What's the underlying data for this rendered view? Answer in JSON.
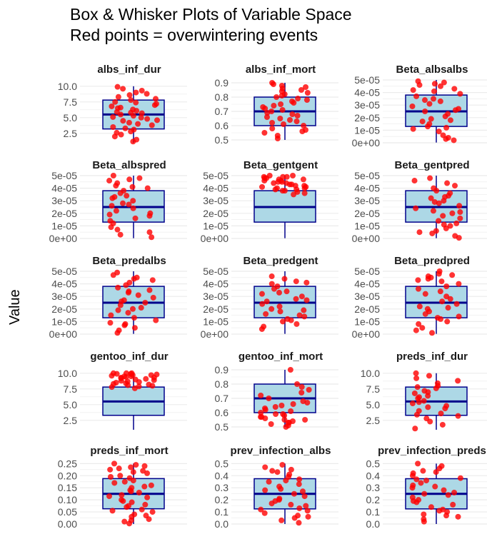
{
  "title_line1": "Box & Whisker Plots of Variable Space",
  "title_line2": "Red points = overwintering events",
  "ylabel": "Value",
  "colors": {
    "box_fill": "#add8e6",
    "box_stroke": "#00008b",
    "point": "#ff0000",
    "grid": "#ebebeb"
  },
  "chart_data": [
    {
      "type": "box",
      "title": "albs_inf_dur",
      "ylim": [
        1,
        11
      ],
      "ticks": [
        "2.5",
        "5.0",
        "7.5",
        "10.0"
      ],
      "tick_values": [
        2.5,
        5,
        7.5,
        10
      ],
      "box": {
        "min": 1,
        "q1": 3.2,
        "median": 5.5,
        "q3": 7.8,
        "max": 10
      },
      "points": [
        1.2,
        1.5,
        2,
        2.3,
        2.8,
        3.1,
        3.5,
        3.8,
        4,
        4.2,
        4.5,
        4.8,
        5,
        5.1,
        5.3,
        5.5,
        5.7,
        5.9,
        6.1,
        6.3,
        6.5,
        6.8,
        7,
        7.2,
        7.5,
        7.8,
        8,
        8.3,
        8.6,
        9,
        9.3,
        9.6,
        9.9,
        4.6,
        5.8,
        6.6,
        7.4,
        3.3,
        2.6,
        8.8
      ]
    },
    {
      "type": "box",
      "title": "albs_inf_mort",
      "ylim": [
        0.48,
        0.92
      ],
      "ticks": [
        "0.5",
        "0.6",
        "0.7",
        "0.8",
        "0.9"
      ],
      "tick_values": [
        0.5,
        0.6,
        0.7,
        0.8,
        0.9
      ],
      "box": {
        "min": 0.5,
        "q1": 0.6,
        "median": 0.7,
        "q3": 0.8,
        "max": 0.9
      },
      "points": [
        0.51,
        0.53,
        0.55,
        0.57,
        0.58,
        0.6,
        0.61,
        0.62,
        0.64,
        0.65,
        0.67,
        0.68,
        0.69,
        0.7,
        0.71,
        0.72,
        0.73,
        0.75,
        0.76,
        0.77,
        0.78,
        0.8,
        0.81,
        0.82,
        0.84,
        0.85,
        0.86,
        0.88,
        0.89,
        0.9,
        0.63,
        0.66,
        0.74,
        0.79,
        0.56,
        0.83,
        0.87
      ]
    },
    {
      "type": "box",
      "title": "Beta_albsalbs",
      "ylim": [
        0,
        5e-05
      ],
      "ticks": [
        "0e+00",
        "1e-05",
        "2e-05",
        "3e-05",
        "4e-05",
        "5e-05"
      ],
      "tick_values": [
        0,
        1e-05,
        2e-05,
        3e-05,
        4e-05,
        5e-05
      ],
      "box": {
        "min": 2e-07,
        "q1": 1.3e-05,
        "median": 2.5e-05,
        "q3": 3.8e-05,
        "max": 5e-05
      },
      "points": [
        2e-06,
        4e-06,
        6e-06,
        9e-06,
        1.1e-05,
        1.3e-05,
        1.5e-05,
        1.7e-05,
        1.9e-05,
        2.1e-05,
        2.3e-05,
        2.5e-05,
        2.7e-05,
        2.9e-05,
        3.1e-05,
        3.3e-05,
        3.5e-05,
        3.7e-05,
        3.9e-05,
        4.1e-05,
        4.3e-05,
        4.5e-05,
        4.7e-05,
        4.9e-05,
        1.8e-05,
        2.6e-05,
        3.4e-05,
        4.2e-05,
        4.6e-05,
        1.2e-05,
        3e-06,
        4.8e-05
      ]
    },
    {
      "type": "box",
      "title": "Beta_albspred",
      "ylim": [
        0,
        5e-05
      ],
      "ticks": [
        "0e+00",
        "1e-05",
        "2e-05",
        "3e-05",
        "4e-05",
        "5e-05"
      ],
      "tick_values": [
        0,
        1e-05,
        2e-05,
        3e-05,
        4e-05,
        5e-05
      ],
      "box": {
        "min": 2e-07,
        "q1": 1.3e-05,
        "median": 2.5e-05,
        "q3": 3.8e-05,
        "max": 5e-05
      },
      "points": [
        1e-06,
        3e-06,
        5e-06,
        7e-06,
        9e-06,
        1.2e-05,
        1.4e-05,
        1.6e-05,
        1.8e-05,
        2e-05,
        2.2e-05,
        2.4e-05,
        2.6e-05,
        2.8e-05,
        3e-05,
        3.2e-05,
        3.4e-05,
        3.6e-05,
        3.8e-05,
        4e-05,
        4.2e-05,
        4.4e-05,
        4.6e-05,
        4.8e-05,
        5e-05,
        2.7e-05,
        3.3e-05,
        4.1e-05,
        4.7e-05,
        1.9e-05
      ]
    },
    {
      "type": "box",
      "title": "Beta_gentgent",
      "ylim": [
        0,
        5e-05
      ],
      "ticks": [
        "0e+00",
        "1e-05",
        "2e-05",
        "3e-05",
        "4e-05",
        "5e-05"
      ],
      "tick_values": [
        0,
        1e-05,
        2e-05,
        3e-05,
        4e-05,
        5e-05
      ],
      "box": {
        "min": 2e-07,
        "q1": 1.3e-05,
        "median": 2.5e-05,
        "q3": 3.8e-05,
        "max": 5e-05
      },
      "points": [
        3.7e-05,
        3.8e-05,
        3.9e-05,
        4e-05,
        4.1e-05,
        4.2e-05,
        4.3e-05,
        4.4e-05,
        4.5e-05,
        4.6e-05,
        4.7e-05,
        4.8e-05,
        4.9e-05,
        5e-05,
        3.9e-05,
        4.1e-05,
        4.3e-05,
        4.5e-05,
        4.7e-05,
        4.9e-05,
        4e-05,
        4.4e-05,
        4.6e-05,
        4.8e-05,
        4.2e-05,
        5e-05,
        3.8e-05,
        3.6e-05,
        3.5e-05,
        4.9e-05
      ]
    },
    {
      "type": "box",
      "title": "Beta_gentpred",
      "ylim": [
        0,
        5e-05
      ],
      "ticks": [
        "0e+00",
        "1e-05",
        "2e-05",
        "3e-05",
        "4e-05",
        "5e-05"
      ],
      "tick_values": [
        0,
        1e-05,
        2e-05,
        3e-05,
        4e-05,
        5e-05
      ],
      "box": {
        "min": 2e-07,
        "q1": 1.3e-05,
        "median": 2.5e-05,
        "q3": 3.8e-05,
        "max": 5e-05
      },
      "points": [
        5e-07,
        2e-06,
        4e-06,
        6e-06,
        8e-06,
        1e-05,
        1.2e-05,
        1.4e-05,
        1.6e-05,
        1.8e-05,
        2e-05,
        2.2e-05,
        2.4e-05,
        2.6e-05,
        2.8e-05,
        3e-05,
        3.2e-05,
        3.4e-05,
        3.6e-05,
        3.8e-05,
        4e-05,
        4.2e-05,
        4.4e-05,
        4.6e-05,
        4.8e-05,
        2.9e-05,
        2.1e-05,
        1.1e-05,
        5e-06,
        3.3e-05
      ]
    },
    {
      "type": "box",
      "title": "Beta_predalbs",
      "ylim": [
        0,
        5e-05
      ],
      "ticks": [
        "0e+00",
        "1e-05",
        "2e-05",
        "3e-05",
        "4e-05",
        "5e-05"
      ],
      "tick_values": [
        0,
        1e-05,
        2e-05,
        3e-05,
        4e-05,
        5e-05
      ],
      "box": {
        "min": 2e-07,
        "q1": 1.3e-05,
        "median": 2.5e-05,
        "q3": 3.8e-05,
        "max": 5e-05
      },
      "points": [
        1e-06,
        3e-06,
        5e-06,
        7e-06,
        9e-06,
        1.1e-05,
        1.3e-05,
        1.5e-05,
        1.7e-05,
        1.9e-05,
        2.1e-05,
        2.3e-05,
        2.5e-05,
        2.7e-05,
        2.9e-05,
        3.1e-05,
        3.3e-05,
        3.5e-05,
        3.7e-05,
        3.9e-05,
        4.1e-05,
        4.3e-05,
        4.5e-05,
        4.7e-05,
        4.9e-05,
        2e-05,
        2.6e-05,
        3.4e-05,
        4.4e-05,
        8e-06
      ]
    },
    {
      "type": "box",
      "title": "Beta_predgent",
      "ylim": [
        0,
        5e-05
      ],
      "ticks": [
        "0e+00",
        "1e-05",
        "2e-05",
        "3e-05",
        "4e-05",
        "5e-05"
      ],
      "tick_values": [
        0,
        1e-05,
        2e-05,
        3e-05,
        4e-05,
        5e-05
      ],
      "box": {
        "min": 2e-07,
        "q1": 1.3e-05,
        "median": 2.5e-05,
        "q3": 3.8e-05,
        "max": 5e-05
      },
      "points": [
        4e-06,
        6e-06,
        8e-06,
        1e-05,
        1.2e-05,
        1.4e-05,
        1.6e-05,
        1.8e-05,
        2e-05,
        2.2e-05,
        2.4e-05,
        2.6e-05,
        2.8e-05,
        3e-05,
        3.2e-05,
        3.4e-05,
        3.6e-05,
        3.8e-05,
        4e-05,
        4.2e-05,
        4.4e-05,
        4.6e-05,
        1.1e-05,
        1.9e-05,
        2.7e-05,
        3.3e-05,
        4.1e-05,
        1.5e-05
      ]
    },
    {
      "type": "box",
      "title": "Beta_predpred",
      "ylim": [
        0,
        5e-05
      ],
      "ticks": [
        "0e+00",
        "1e-05",
        "2e-05",
        "3e-05",
        "4e-05",
        "5e-05"
      ],
      "tick_values": [
        0,
        1e-05,
        2e-05,
        3e-05,
        4e-05,
        5e-05
      ],
      "box": {
        "min": 2e-07,
        "q1": 1.3e-05,
        "median": 2.5e-05,
        "q3": 3.8e-05,
        "max": 5e-05
      },
      "points": [
        1e-06,
        3e-06,
        5e-06,
        8e-06,
        1e-05,
        1.2e-05,
        1.4e-05,
        1.6e-05,
        1.8e-05,
        2e-05,
        2.2e-05,
        2.4e-05,
        2.6e-05,
        2.8e-05,
        3e-05,
        3.2e-05,
        3.4e-05,
        3.6e-05,
        3.8e-05,
        4e-05,
        4.2e-05,
        4.4e-05,
        4.6e-05,
        4.8e-05,
        5e-05,
        4.3e-05,
        4.5e-05,
        4.7e-05,
        2.1e-05,
        1.3e-05
      ]
    },
    {
      "type": "box",
      "title": "gentoo_inf_dur",
      "ylim": [
        1,
        11
      ],
      "ticks": [
        "2.5",
        "5.0",
        "7.5",
        "10.0"
      ],
      "tick_values": [
        2.5,
        5,
        7.5,
        10
      ],
      "box": {
        "min": 1,
        "q1": 3.3,
        "median": 5.5,
        "q3": 7.8,
        "max": 10
      },
      "points": [
        7.6,
        7.9,
        8.1,
        8.3,
        8.5,
        8.7,
        8.9,
        9.1,
        9.3,
        9.5,
        9.7,
        9.9,
        10,
        8,
        8.4,
        8.8,
        9.2,
        9.6,
        10,
        9.4,
        9.8,
        8.2,
        8.6,
        9,
        7.8,
        10,
        9.9,
        9.7,
        9.5,
        9.3
      ]
    },
    {
      "type": "box",
      "title": "gentoo_inf_mort",
      "ylim": [
        0.48,
        0.92
      ],
      "ticks": [
        "0.5",
        "0.6",
        "0.7",
        "0.8",
        "0.9"
      ],
      "tick_values": [
        0.5,
        0.6,
        0.7,
        0.8,
        0.9
      ],
      "box": {
        "min": 0.5,
        "q1": 0.6,
        "median": 0.7,
        "q3": 0.8,
        "max": 0.9
      },
      "points": [
        0.5,
        0.51,
        0.52,
        0.53,
        0.54,
        0.55,
        0.56,
        0.57,
        0.58,
        0.59,
        0.6,
        0.61,
        0.62,
        0.63,
        0.64,
        0.65,
        0.66,
        0.67,
        0.68,
        0.7,
        0.72,
        0.74,
        0.76,
        0.78,
        0.8,
        0.53,
        0.55,
        0.57,
        0.59,
        0.9
      ]
    },
    {
      "type": "box",
      "title": "preds_inf_dur",
      "ylim": [
        1,
        11
      ],
      "ticks": [
        "2.5",
        "5.0",
        "7.5",
        "10.0"
      ],
      "tick_values": [
        2.5,
        5,
        7.5,
        10
      ],
      "box": {
        "min": 1,
        "q1": 3.3,
        "median": 5.5,
        "q3": 7.8,
        "max": 10
      },
      "points": [
        1.2,
        1.8,
        2.3,
        2.8,
        3.2,
        3.6,
        4,
        4.4,
        4.8,
        5.2,
        5.6,
        6,
        6.4,
        6.8,
        7.2,
        7.6,
        8,
        8.4,
        8.8,
        9.2,
        9.6,
        10,
        5.4,
        6.2,
        7,
        7.8,
        4.6,
        3.4
      ]
    },
    {
      "type": "box",
      "title": "preds_inf_mort",
      "ylim": [
        0,
        0.26
      ],
      "ticks": [
        "0.00",
        "0.05",
        "0.10",
        "0.15",
        "0.20",
        "0.25"
      ],
      "tick_values": [
        0,
        0.05,
        0.1,
        0.15,
        0.2,
        0.25
      ],
      "box": {
        "min": 0,
        "q1": 0.063,
        "median": 0.125,
        "q3": 0.188,
        "max": 0.25
      },
      "points": [
        0.002,
        0.01,
        0.02,
        0.03,
        0.04,
        0.05,
        0.06,
        0.07,
        0.08,
        0.09,
        0.1,
        0.11,
        0.12,
        0.13,
        0.14,
        0.15,
        0.16,
        0.17,
        0.18,
        0.19,
        0.2,
        0.21,
        0.22,
        0.23,
        0.24,
        0.25,
        0.015,
        0.035,
        0.055,
        0.075,
        0.095,
        0.115,
        0.135,
        0.155,
        0.175,
        0.195,
        0.215,
        0.235,
        0.245,
        0.225
      ]
    },
    {
      "type": "box",
      "title": "prev_infection_albs",
      "ylim": [
        0,
        0.52
      ],
      "ticks": [
        "0.0",
        "0.1",
        "0.2",
        "0.3",
        "0.4",
        "0.5"
      ],
      "tick_values": [
        0,
        0.1,
        0.2,
        0.3,
        0.4,
        0.5
      ],
      "box": {
        "min": 0,
        "q1": 0.125,
        "median": 0.25,
        "q3": 0.375,
        "max": 0.5
      },
      "points": [
        0.01,
        0.03,
        0.05,
        0.07,
        0.09,
        0.11,
        0.13,
        0.15,
        0.17,
        0.19,
        0.21,
        0.23,
        0.25,
        0.27,
        0.29,
        0.31,
        0.33,
        0.35,
        0.37,
        0.39,
        0.41,
        0.43,
        0.45,
        0.47,
        0.49,
        0.2,
        0.28,
        0.36,
        0.44,
        0.12,
        0.06,
        0.16
      ]
    },
    {
      "type": "box",
      "title": "prev_infection_preds",
      "ylim": [
        0,
        0.52
      ],
      "ticks": [
        "0.0",
        "0.1",
        "0.2",
        "0.3",
        "0.4",
        "0.5"
      ],
      "tick_values": [
        0,
        0.1,
        0.2,
        0.3,
        0.4,
        0.5
      ],
      "box": {
        "min": 0,
        "q1": 0.125,
        "median": 0.25,
        "q3": 0.375,
        "max": 0.5
      },
      "points": [
        0.02,
        0.04,
        0.06,
        0.08,
        0.1,
        0.12,
        0.14,
        0.16,
        0.18,
        0.2,
        0.22,
        0.24,
        0.26,
        0.28,
        0.3,
        0.32,
        0.34,
        0.36,
        0.38,
        0.4,
        0.42,
        0.44,
        0.46,
        0.48,
        0.5,
        0.25,
        0.31,
        0.37,
        0.43,
        0.19,
        0.11,
        0.07
      ]
    }
  ]
}
